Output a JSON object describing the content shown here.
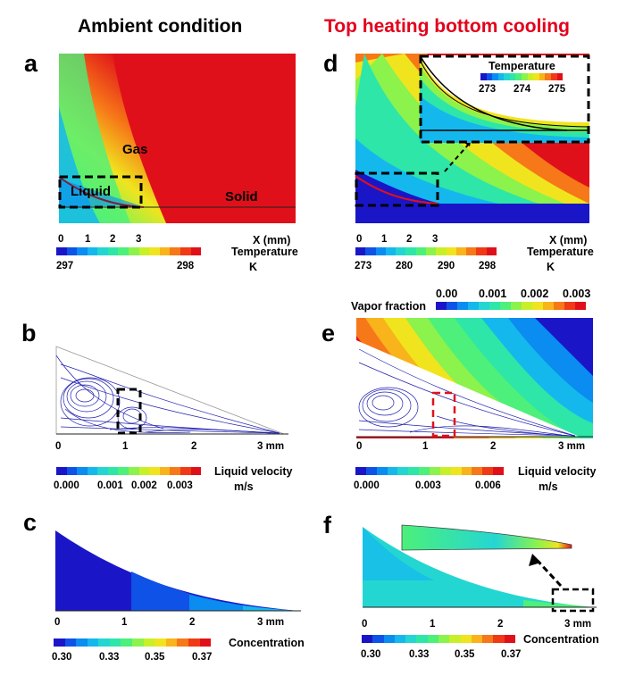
{
  "headers": {
    "left": "Ambient condition",
    "right": "Top heating bottom cooling",
    "right_color": "#e3001b"
  },
  "panels": {
    "a": {
      "label": "a",
      "gas": "Gas",
      "liquid": "Liquid",
      "solid": "Solid",
      "x_ticks": [
        "0",
        "1",
        "2",
        "3"
      ],
      "x_unit": "X (mm)",
      "cbar_title": "Temperature",
      "cbar_ticks": [
        "297",
        "298"
      ],
      "cbar_unit": "K"
    },
    "d": {
      "label": "d",
      "inset_title": "Temperature",
      "inset_ticks": [
        "273",
        "274",
        "275"
      ],
      "x_ticks": [
        "0",
        "1",
        "2",
        "3"
      ],
      "x_unit": "X (mm)",
      "cbar_title": "Temperature",
      "cbar_ticks": [
        "273",
        "280",
        "290",
        "298"
      ],
      "cbar_unit": "K"
    },
    "b": {
      "label": "b",
      "x_ticks": [
        "0",
        "1",
        "2"
      ],
      "x_end": "3  mm",
      "cbar_title": "Liquid velocity",
      "cbar_ticks": [
        "0.000",
        "0.001",
        "0.002",
        "0.003"
      ],
      "cbar_unit": "m/s"
    },
    "e": {
      "label": "e",
      "vapor_title": "Vapor fraction",
      "vapor_ticks": [
        "0.00",
        "0.001",
        "0.002",
        "0.003"
      ],
      "x_ticks": [
        "0",
        "1",
        "2"
      ],
      "x_end": "3  mm",
      "cbar_title": "Liquid velocity",
      "cbar_ticks": [
        "0.000",
        "0.003",
        "0.006"
      ],
      "cbar_unit": "m/s"
    },
    "c": {
      "label": "c",
      "x_ticks": [
        "0",
        "1",
        "2"
      ],
      "x_end": "3  mm",
      "cbar_title": "Concentration",
      "cbar_ticks": [
        "0.30",
        "0.33",
        "0.35",
        "0.37"
      ]
    },
    "f": {
      "label": "f",
      "x_ticks": [
        "0",
        "1",
        "2"
      ],
      "x_end": "3  mm",
      "cbar_title": "Concentration",
      "cbar_ticks": [
        "0.30",
        "0.33",
        "0.35",
        "0.37"
      ]
    }
  },
  "colormap": [
    "#1a16c8",
    "#0f52e8",
    "#0a8cf0",
    "#14b8ec",
    "#24d6d2",
    "#2ee6a8",
    "#4cf07a",
    "#8cf24c",
    "#c8f028",
    "#f0e41e",
    "#f8b41a",
    "#f67818",
    "#f03a16",
    "#e0101a"
  ]
}
